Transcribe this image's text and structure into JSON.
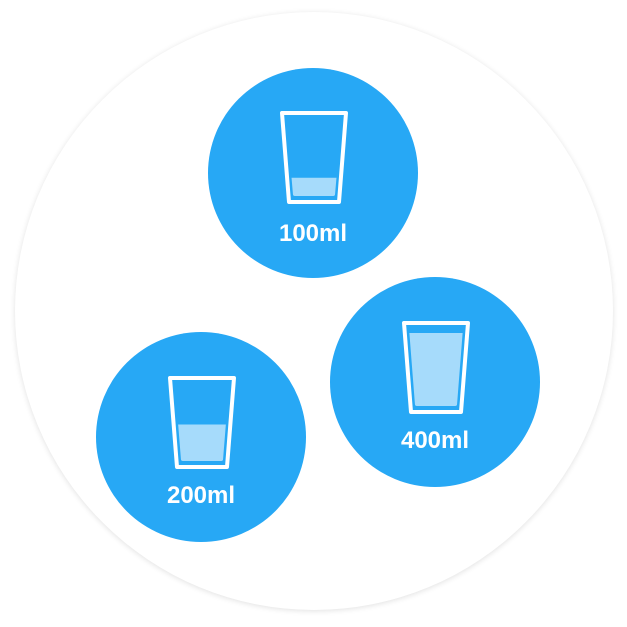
{
  "colors": {
    "accent": "#27a8f5",
    "water": "#a6dbfb",
    "cup_outline": "#ffffff",
    "panel": "#ffffff"
  },
  "options": [
    {
      "label": "100ml",
      "icon": "water-glass-icon",
      "fill_fraction": 0.25
    },
    {
      "label": "200ml",
      "icon": "water-glass-icon",
      "fill_fraction": 0.5
    },
    {
      "label": "400ml",
      "icon": "water-glass-icon",
      "fill_fraction": 1.0
    }
  ]
}
